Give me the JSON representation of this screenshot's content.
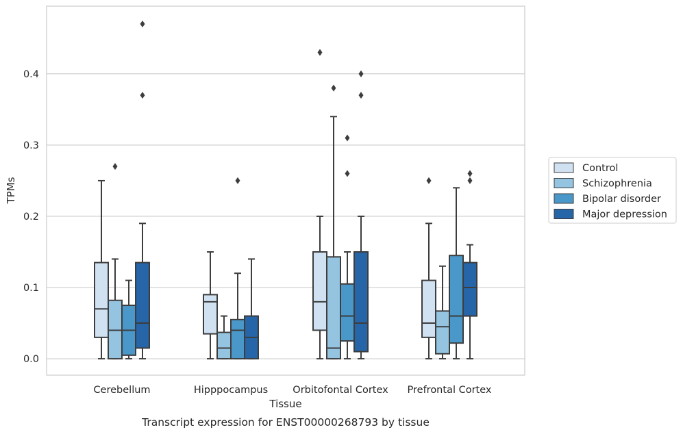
{
  "chart_data": {
    "type": "box",
    "caption": "Transcript expression for ENST00000268793 by tissue",
    "xlabel": "Tissue",
    "ylabel": "TPMs",
    "ylim": [
      -0.023,
      0.495
    ],
    "yticks": [
      "0.0",
      "0.1",
      "0.2",
      "0.3",
      "0.4"
    ],
    "ytick_values": [
      0.0,
      0.1,
      0.2,
      0.3,
      0.4
    ],
    "grid": "horizontal",
    "legend_position": "right",
    "categories": [
      "Cerebellum",
      "Hipppocampus",
      "Orbitofontal Cortex",
      "Prefrontal Cortex"
    ],
    "series": [
      {
        "name": "Control",
        "color": "#d0e1f2",
        "boxes": [
          {
            "whisker_low": 0.0,
            "q1": 0.03,
            "median": 0.07,
            "q3": 0.135,
            "whisker_high": 0.25,
            "outliers": []
          },
          {
            "whisker_low": 0.0,
            "q1": 0.035,
            "median": 0.08,
            "q3": 0.09,
            "whisker_high": 0.15,
            "outliers": []
          },
          {
            "whisker_low": 0.0,
            "q1": 0.04,
            "median": 0.08,
            "q3": 0.15,
            "whisker_high": 0.2,
            "outliers": [
              0.43
            ]
          },
          {
            "whisker_low": 0.0,
            "q1": 0.03,
            "median": 0.05,
            "q3": 0.11,
            "whisker_high": 0.19,
            "outliers": [
              0.25
            ]
          }
        ]
      },
      {
        "name": "Schizophrenia",
        "color": "#94c4df",
        "boxes": [
          {
            "whisker_low": 0.0,
            "q1": 0.0,
            "median": 0.04,
            "q3": 0.082,
            "whisker_high": 0.14,
            "outliers": [
              0.27
            ]
          },
          {
            "whisker_low": 0.0,
            "q1": 0.0,
            "median": 0.015,
            "q3": 0.037,
            "whisker_high": 0.06,
            "outliers": []
          },
          {
            "whisker_low": 0.0,
            "q1": 0.0,
            "median": 0.015,
            "q3": 0.143,
            "whisker_high": 0.34,
            "outliers": [
              0.38
            ]
          },
          {
            "whisker_low": 0.0,
            "q1": 0.007,
            "median": 0.045,
            "q3": 0.067,
            "whisker_high": 0.13,
            "outliers": []
          }
        ]
      },
      {
        "name": "Bipolar disorder",
        "color": "#4a98c9",
        "boxes": [
          {
            "whisker_low": 0.0,
            "q1": 0.005,
            "median": 0.04,
            "q3": 0.075,
            "whisker_high": 0.11,
            "outliers": []
          },
          {
            "whisker_low": 0.0,
            "q1": 0.0,
            "median": 0.04,
            "q3": 0.055,
            "whisker_high": 0.12,
            "outliers": [
              0.25
            ]
          },
          {
            "whisker_low": 0.0,
            "q1": 0.025,
            "median": 0.06,
            "q3": 0.105,
            "whisker_high": 0.15,
            "outliers": [
              0.26,
              0.31
            ]
          },
          {
            "whisker_low": 0.0,
            "q1": 0.022,
            "median": 0.06,
            "q3": 0.145,
            "whisker_high": 0.24,
            "outliers": []
          }
        ]
      },
      {
        "name": "Major depression",
        "color": "#2565a8",
        "boxes": [
          {
            "whisker_low": 0.0,
            "q1": 0.015,
            "median": 0.05,
            "q3": 0.135,
            "whisker_high": 0.19,
            "outliers": [
              0.37,
              0.47
            ]
          },
          {
            "whisker_low": 0.0,
            "q1": 0.0,
            "median": 0.03,
            "q3": 0.06,
            "whisker_high": 0.14,
            "outliers": []
          },
          {
            "whisker_low": 0.0,
            "q1": 0.01,
            "median": 0.05,
            "q3": 0.15,
            "whisker_high": 0.2,
            "outliers": [
              0.37,
              0.4
            ]
          },
          {
            "whisker_low": 0.0,
            "q1": 0.06,
            "median": 0.1,
            "q3": 0.135,
            "whisker_high": 0.16,
            "outliers": [
              0.25,
              0.26
            ]
          }
        ]
      }
    ]
  }
}
